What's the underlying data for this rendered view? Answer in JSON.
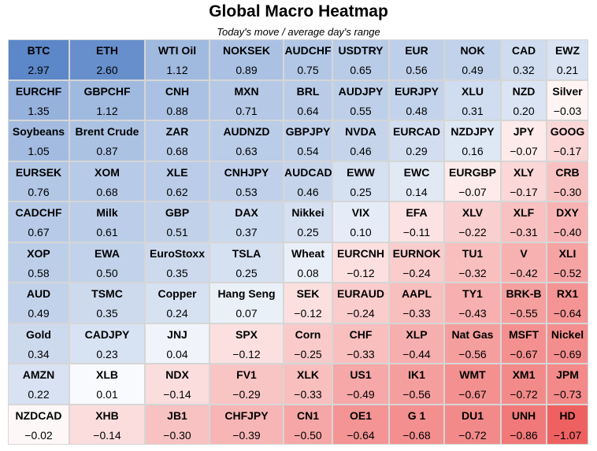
{
  "chart_data": {
    "type": "heatmap",
    "title": "Global Macro Heatmap",
    "subtitle": "Today's move / average day's range",
    "color_scale": {
      "positive": "#5b86c8",
      "neutral": "#ffffff",
      "negative": "#ef5e5e",
      "max_abs": 3.0
    },
    "rows": [
      [
        {
          "name": "BTC",
          "value": 2.97
        },
        {
          "name": "ETH",
          "value": 2.6
        },
        {
          "name": "WTI Oil",
          "value": 1.12
        },
        {
          "name": "NOKSEK",
          "value": 0.89
        },
        {
          "name": "AUDCHF",
          "value": 0.75
        },
        {
          "name": "USDTRY",
          "value": 0.65
        },
        {
          "name": "EUR",
          "value": 0.56
        },
        {
          "name": "NOK",
          "value": 0.49
        },
        {
          "name": "CAD",
          "value": 0.32
        },
        {
          "name": "EWZ",
          "value": 0.21
        }
      ],
      [
        {
          "name": "EURCHF",
          "value": 1.35
        },
        {
          "name": "GBPCHF",
          "value": 1.12
        },
        {
          "name": "CNH",
          "value": 0.88
        },
        {
          "name": "MXN",
          "value": 0.71
        },
        {
          "name": "BRL",
          "value": 0.64
        },
        {
          "name": "AUDJPY",
          "value": 0.55
        },
        {
          "name": "EURJPY",
          "value": 0.48
        },
        {
          "name": "XLU",
          "value": 0.31
        },
        {
          "name": "NZD",
          "value": 0.2
        },
        {
          "name": "Silver",
          "value": -0.03
        }
      ],
      [
        {
          "name": "Soybeans",
          "value": 1.05
        },
        {
          "name": "Brent Crude",
          "value": 0.87
        },
        {
          "name": "ZAR",
          "value": 0.68
        },
        {
          "name": "AUDNZD",
          "value": 0.63
        },
        {
          "name": "GBPJPY",
          "value": 0.54
        },
        {
          "name": "NVDA",
          "value": 0.46
        },
        {
          "name": "EURCAD",
          "value": 0.29
        },
        {
          "name": "NZDJPY",
          "value": 0.16
        },
        {
          "name": "JPY",
          "value": -0.07
        },
        {
          "name": "GOOG",
          "value": -0.17
        }
      ],
      [
        {
          "name": "EURSEK",
          "value": 0.76
        },
        {
          "name": "XOM",
          "value": 0.68
        },
        {
          "name": "XLE",
          "value": 0.62
        },
        {
          "name": "CNHJPY",
          "value": 0.53
        },
        {
          "name": "AUDCAD",
          "value": 0.46
        },
        {
          "name": "EWW",
          "value": 0.25
        },
        {
          "name": "EWC",
          "value": 0.14
        },
        {
          "name": "EURGBP",
          "value": -0.07
        },
        {
          "name": "XLY",
          "value": -0.17
        },
        {
          "name": "CRB",
          "value": -0.3
        }
      ],
      [
        {
          "name": "CADCHF",
          "value": 0.67
        },
        {
          "name": "Milk",
          "value": 0.61
        },
        {
          "name": "GBP",
          "value": 0.51
        },
        {
          "name": "DAX",
          "value": 0.37
        },
        {
          "name": "Nikkei",
          "value": 0.25
        },
        {
          "name": "VIX",
          "value": 0.1
        },
        {
          "name": "EFA",
          "value": -0.11
        },
        {
          "name": "XLV",
          "value": -0.22
        },
        {
          "name": "XLF",
          "value": -0.31
        },
        {
          "name": "DXY",
          "value": -0.4
        }
      ],
      [
        {
          "name": "XOP",
          "value": 0.58
        },
        {
          "name": "EWA",
          "value": 0.5
        },
        {
          "name": "EuroStoxx",
          "value": 0.35
        },
        {
          "name": "TSLA",
          "value": 0.25
        },
        {
          "name": "Wheat",
          "value": 0.08
        },
        {
          "name": "EURCNH",
          "value": -0.12
        },
        {
          "name": "EURNOK",
          "value": -0.24
        },
        {
          "name": "TU1",
          "value": -0.32
        },
        {
          "name": "V",
          "value": -0.42
        },
        {
          "name": "XLI",
          "value": -0.52
        }
      ],
      [
        {
          "name": "AUD",
          "value": 0.49
        },
        {
          "name": "TSMC",
          "value": 0.35
        },
        {
          "name": "Copper",
          "value": 0.24
        },
        {
          "name": "Hang Seng",
          "value": 0.07
        },
        {
          "name": "SEK",
          "value": -0.12
        },
        {
          "name": "EURAUD",
          "value": -0.24
        },
        {
          "name": "AAPL",
          "value": -0.33
        },
        {
          "name": "TY1",
          "value": -0.43
        },
        {
          "name": "BRK-B",
          "value": -0.55
        },
        {
          "name": "RX1",
          "value": -0.64
        }
      ],
      [
        {
          "name": "Gold",
          "value": 0.34
        },
        {
          "name": "CADJPY",
          "value": 0.23
        },
        {
          "name": "JNJ",
          "value": 0.04
        },
        {
          "name": "SPX",
          "value": -0.12
        },
        {
          "name": "Corn",
          "value": -0.25
        },
        {
          "name": "CHF",
          "value": -0.33
        },
        {
          "name": "XLP",
          "value": -0.44
        },
        {
          "name": "Nat Gas",
          "value": -0.56
        },
        {
          "name": "MSFT",
          "value": -0.67
        },
        {
          "name": "Nickel",
          "value": -0.69
        }
      ],
      [
        {
          "name": "AMZN",
          "value": 0.22
        },
        {
          "name": "XLB",
          "value": 0.01
        },
        {
          "name": "NDX",
          "value": -0.14
        },
        {
          "name": "FV1",
          "value": -0.29
        },
        {
          "name": "XLK",
          "value": -0.33
        },
        {
          "name": "US1",
          "value": -0.49
        },
        {
          "name": "IK1",
          "value": -0.56
        },
        {
          "name": "WMT",
          "value": -0.67
        },
        {
          "name": "XM1",
          "value": -0.72
        },
        {
          "name": "JPM",
          "value": -0.73
        }
      ],
      [
        {
          "name": "NZDCAD",
          "value": -0.02
        },
        {
          "name": "XHB",
          "value": -0.14
        },
        {
          "name": "JB1",
          "value": -0.3
        },
        {
          "name": "CHFJPY",
          "value": -0.39
        },
        {
          "name": "CN1",
          "value": -0.5
        },
        {
          "name": "OE1",
          "value": -0.64
        },
        {
          "name": "G 1",
          "value": -0.68
        },
        {
          "name": "DU1",
          "value": -0.72
        },
        {
          "name": "UNH",
          "value": -0.86
        },
        {
          "name": "HD",
          "value": -1.07
        }
      ]
    ]
  }
}
